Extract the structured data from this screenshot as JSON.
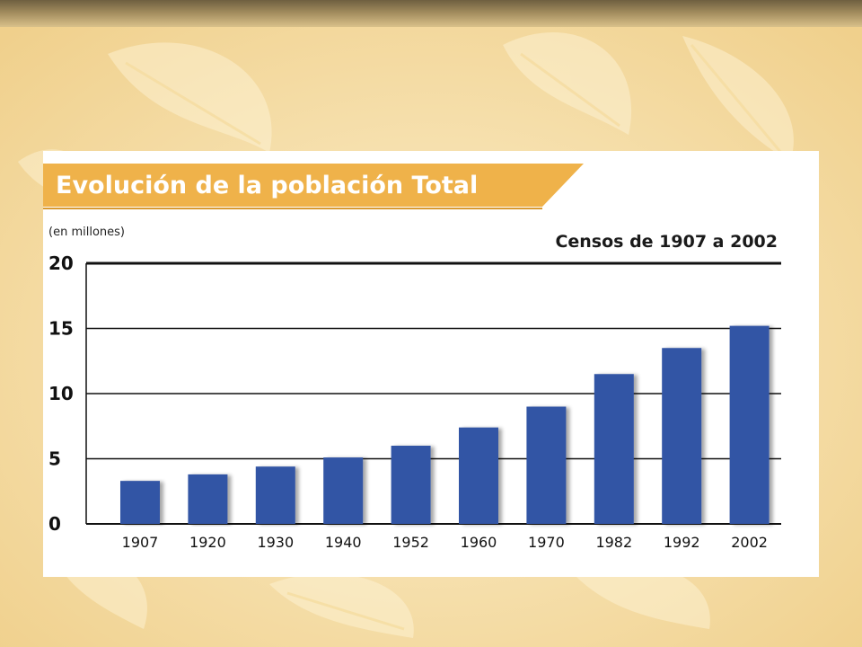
{
  "colors": {
    "background": "#f6e2ae",
    "title_banner": "#efb24a",
    "bar": "#3355a5",
    "grid": "#111111"
  },
  "chart_data": {
    "type": "bar",
    "title": "Evolución de la población Total",
    "subtitle": "Censos de 1907 a 2002",
    "ylabel": "(en millones)",
    "xlabel": "",
    "categories": [
      "1907",
      "1920",
      "1930",
      "1940",
      "1952",
      "1960",
      "1970",
      "1982",
      "1992",
      "2002"
    ],
    "values": [
      3.3,
      3.8,
      4.4,
      5.1,
      6.0,
      7.4,
      9.0,
      11.5,
      13.5,
      15.2
    ],
    "yticks": [
      "0",
      "5",
      "10",
      "15",
      "20"
    ],
    "ylim": [
      0,
      20
    ],
    "grid": true,
    "legend": "none"
  }
}
